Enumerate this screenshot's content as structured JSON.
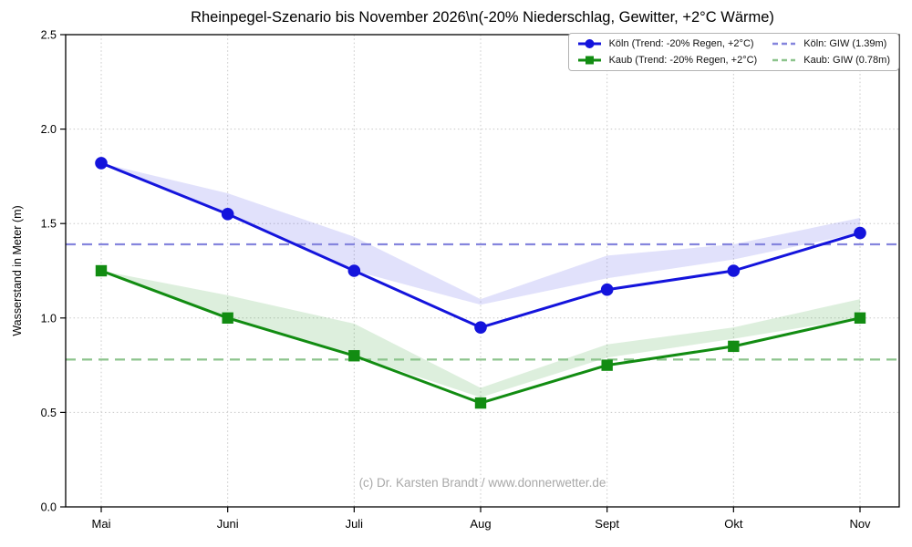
{
  "chart_data": {
    "type": "line",
    "title": "Rheinpegel-Szenario bis November 2026\\n(-20% Niederschlag, Gewitter, +2°C Wärme)",
    "ylabel": "Wasserstand in Meter (m)",
    "xlabel": "",
    "categories": [
      "Mai",
      "Juni",
      "Juli",
      "Aug",
      "Sept",
      "Okt",
      "Nov"
    ],
    "ylim": [
      0.0,
      2.5
    ],
    "yticks": [
      "0.0",
      "0.5",
      "1.0",
      "1.5",
      "2.0",
      "2.5"
    ],
    "grid": "dotted",
    "legend_position": "upper right",
    "series": [
      {
        "name": "Köln (Trend: -20% Regen, +2°C)",
        "color": "#1414dc",
        "marker": "circle",
        "values": [
          1.82,
          1.55,
          1.25,
          0.95,
          1.15,
          1.25,
          1.45
        ],
        "band_upper": [
          1.82,
          1.66,
          1.43,
          1.1,
          1.33,
          1.39,
          1.53
        ],
        "band_lower": [
          1.82,
          1.55,
          1.25,
          1.07,
          1.21,
          1.31,
          1.45
        ],
        "band_fill": "rgba(70,70,230,0.16)"
      },
      {
        "name": "Kaub (Trend: -20% Regen, +2°C)",
        "color": "#128c12",
        "marker": "square",
        "values": [
          1.25,
          1.0,
          0.8,
          0.55,
          0.75,
          0.85,
          1.0
        ],
        "band_upper": [
          1.25,
          1.12,
          0.97,
          0.63,
          0.86,
          0.95,
          1.1
        ],
        "band_lower": [
          1.25,
          1.0,
          0.8,
          0.58,
          0.79,
          0.89,
          1.0
        ],
        "band_fill": "rgba(30,150,30,0.15)"
      }
    ],
    "reference_lines": [
      {
        "label": "Köln: GIW (1.39m)",
        "value": 1.39,
        "color": "#8585dd",
        "style": "dashed"
      },
      {
        "label": "Kaub: GIW (0.78m)",
        "value": 0.78,
        "color": "#8cc48c",
        "style": "dashed"
      }
    ],
    "watermark": "(c) Dr. Karsten Brandt / www.donnerwetter.de",
    "grid_color": "#c8c8c8",
    "frame_color": "#000000",
    "background": "#ffffff"
  }
}
